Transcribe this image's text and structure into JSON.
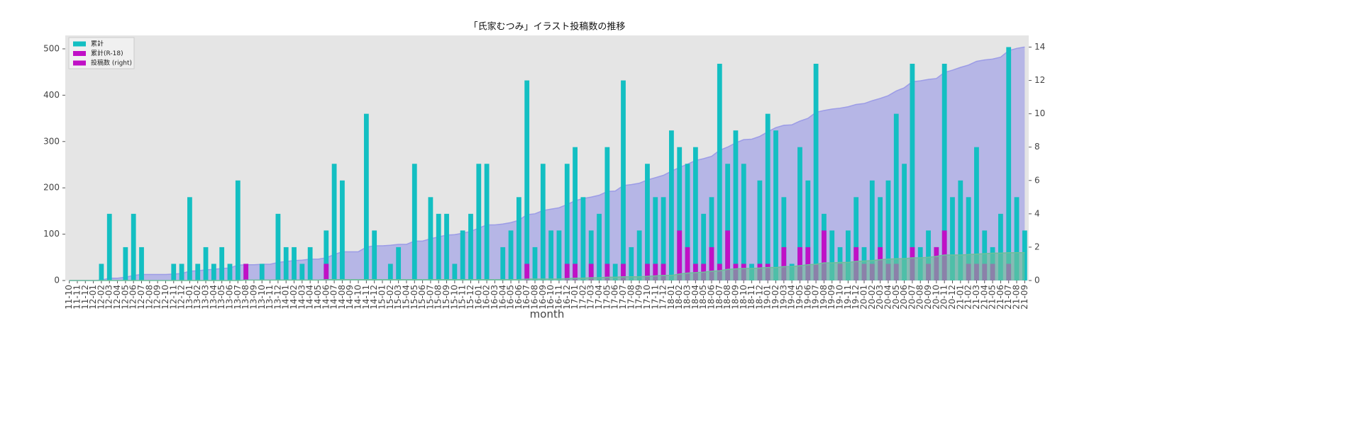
{
  "chart_data": {
    "type": "bar",
    "title": "「氏家むつみ」イラスト投稿数の推移",
    "xlabel": "month",
    "categories": [
      "11-10",
      "11-11",
      "11-12",
      "12-01",
      "12-02",
      "12-03",
      "12-04",
      "12-05",
      "12-06",
      "12-07",
      "12-08",
      "12-09",
      "12-10",
      "12-11",
      "12-12",
      "13-01",
      "13-02",
      "13-03",
      "13-04",
      "13-05",
      "13-06",
      "13-07",
      "13-08",
      "13-09",
      "13-10",
      "13-11",
      "13-12",
      "14-01",
      "14-02",
      "14-03",
      "14-04",
      "14-05",
      "14-06",
      "14-07",
      "14-08",
      "14-09",
      "14-10",
      "14-11",
      "14-12",
      "15-01",
      "15-02",
      "15-03",
      "15-04",
      "15-05",
      "15-06",
      "15-07",
      "15-08",
      "15-09",
      "15-10",
      "15-11",
      "15-12",
      "16-01",
      "16-02",
      "16-03",
      "16-04",
      "16-05",
      "16-06",
      "16-07",
      "16-08",
      "16-09",
      "16-10",
      "16-11",
      "16-12",
      "17-01",
      "17-02",
      "17-03",
      "17-04",
      "17-05",
      "17-06",
      "17-07",
      "17-08",
      "17-09",
      "17-10",
      "17-11",
      "17-12",
      "18-01",
      "18-02",
      "18-03",
      "18-04",
      "18-05",
      "18-06",
      "18-07",
      "18-08",
      "18-09",
      "18-10",
      "18-11",
      "18-12",
      "19-01",
      "19-02",
      "19-03",
      "19-04",
      "19-05",
      "19-06",
      "19-07",
      "19-08",
      "19-09",
      "19-10",
      "19-11",
      "19-12",
      "20-01",
      "20-02",
      "20-03",
      "20-04",
      "20-05",
      "20-06",
      "20-07",
      "20-08",
      "20-09",
      "20-10",
      "20-11",
      "20-12",
      "21-01",
      "21-02",
      "21-03",
      "21-04",
      "21-05",
      "21-06",
      "21-07",
      "21-08",
      "21-09"
    ],
    "series": [
      {
        "kind": "area",
        "color": "#9c9ce6",
        "values": [
          0,
          0,
          0,
          0,
          1,
          5,
          5,
          7,
          11,
          13,
          13,
          13,
          13,
          14,
          15,
          20,
          21,
          23,
          24,
          26,
          27,
          33,
          34,
          34,
          35,
          35,
          39,
          41,
          43,
          44,
          46,
          46,
          49,
          56,
          62,
          62,
          62,
          72,
          75,
          75,
          76,
          78,
          78,
          85,
          85,
          90,
          94,
          98,
          99,
          102,
          106,
          113,
          120,
          120,
          122,
          125,
          130,
          142,
          144,
          151,
          154,
          157,
          164,
          172,
          177,
          180,
          184,
          192,
          193,
          205,
          207,
          210,
          217,
          222,
          227,
          236,
          244,
          251,
          259,
          263,
          268,
          281,
          288,
          297,
          304,
          305,
          311,
          321,
          330,
          335,
          336,
          344,
          350,
          363,
          367,
          370,
          372,
          375,
          380,
          382,
          388,
          393,
          399,
          409,
          416,
          429,
          431,
          434,
          436,
          449,
          454,
          460,
          465,
          473,
          476,
          478,
          482,
          496,
          501,
          504
        ]
      },
      {
        "kind": "bar",
        "axis": "y2",
        "color": "#13bfc2",
        "values": [
          0,
          0,
          0,
          0,
          1,
          4,
          0,
          2,
          4,
          2,
          0,
          0,
          0,
          1,
          1,
          5,
          1,
          2,
          1,
          2,
          1,
          6,
          1,
          0,
          1,
          0,
          4,
          2,
          2,
          1,
          2,
          0,
          3,
          7,
          6,
          0,
          0,
          10,
          3,
          0,
          1,
          2,
          0,
          7,
          0,
          5,
          4,
          4,
          1,
          3,
          4,
          7,
          7,
          0,
          2,
          3,
          5,
          12,
          2,
          7,
          3,
          3,
          7,
          8,
          5,
          3,
          4,
          8,
          1,
          12,
          2,
          3,
          7,
          5,
          5,
          9,
          8,
          7,
          8,
          4,
          5,
          13,
          7,
          9,
          7,
          1,
          6,
          10,
          9,
          5,
          1,
          8,
          6,
          13,
          4,
          3,
          2,
          3,
          5,
          2,
          6,
          5,
          6,
          10,
          7,
          13,
          2,
          3,
          2,
          13,
          5,
          6,
          5,
          8,
          3,
          2,
          4,
          14,
          5,
          3
        ]
      },
      {
        "kind": "bar",
        "axis": "y2",
        "color": "#c010c6",
        "values": [
          0,
          0,
          0,
          0,
          0,
          0,
          0,
          0,
          0,
          0,
          0,
          0,
          0,
          0,
          0,
          0,
          0,
          0,
          0,
          0,
          0,
          0,
          1,
          0,
          0,
          0,
          0,
          0,
          0,
          0,
          0,
          0,
          1,
          0,
          0,
          0,
          0,
          0,
          0,
          0,
          0,
          0,
          0,
          0,
          0,
          0,
          0,
          0,
          0,
          0,
          0,
          0,
          0,
          0,
          0,
          0,
          0,
          1,
          0,
          0,
          0,
          0,
          1,
          1,
          0,
          1,
          0,
          1,
          0,
          1,
          0,
          0,
          1,
          1,
          1,
          0,
          3,
          2,
          1,
          1,
          2,
          1,
          3,
          1,
          1,
          0,
          1,
          1,
          0,
          2,
          0,
          2,
          2,
          1,
          3,
          0,
          1,
          0,
          2,
          1,
          1,
          2,
          1,
          1,
          0,
          2,
          0,
          1,
          2,
          3,
          0,
          0,
          1,
          1,
          1,
          1,
          0,
          1,
          0,
          0
        ]
      },
      {
        "kind": "area",
        "color": "#6fbf9a",
        "values": [
          0,
          0,
          0,
          0,
          0,
          0,
          0,
          0,
          0,
          0,
          0,
          0,
          0,
          0,
          0,
          0,
          0,
          0,
          0,
          0,
          0,
          0,
          1,
          1,
          1,
          1,
          1,
          1,
          1,
          1,
          1,
          1,
          2,
          2,
          2,
          2,
          2,
          2,
          2,
          2,
          2,
          2,
          2,
          2,
          2,
          2,
          2,
          2,
          2,
          2,
          2,
          2,
          2,
          2,
          2,
          2,
          2,
          3,
          3,
          3,
          3,
          3,
          4,
          5,
          5,
          6,
          6,
          7,
          7,
          8,
          8,
          8,
          9,
          10,
          11,
          11,
          14,
          16,
          17,
          18,
          20,
          21,
          24,
          25,
          26,
          26,
          27,
          28,
          28,
          30,
          30,
          32,
          34,
          35,
          38,
          38,
          39,
          39,
          41,
          42,
          43,
          45,
          46,
          47,
          47,
          49,
          49,
          50,
          52,
          55,
          55,
          55,
          56,
          57,
          58,
          59,
          59,
          60,
          60,
          60
        ]
      }
    ],
    "legend": [
      {
        "name": "累計",
        "color": "#13bfc2"
      },
      {
        "name": "累計(R-18)",
        "color": "#c010c6"
      },
      {
        "name": "投稿数 (right)",
        "color": "#c010c6"
      }
    ],
    "ylim": [
      0,
      529
    ],
    "yticks": [
      0,
      100,
      200,
      300,
      400,
      500
    ],
    "y2lim": [
      0,
      14.7
    ],
    "y2ticks": [
      0,
      2,
      4,
      6,
      8,
      10,
      12,
      14
    ],
    "grid": false
  }
}
